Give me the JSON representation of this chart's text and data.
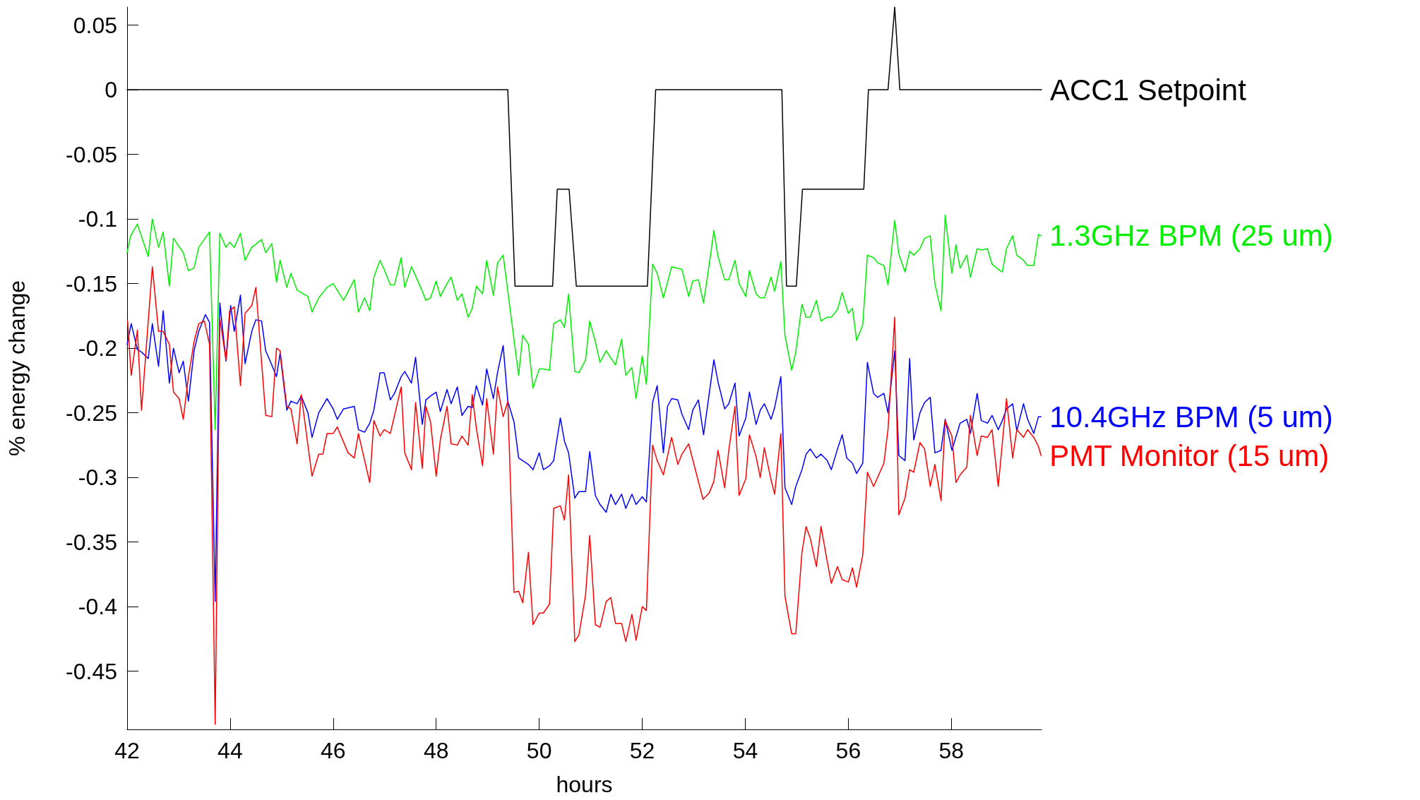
{
  "chart_data": {
    "type": "line",
    "xlabel": "hours",
    "ylabel": "% energy change",
    "xlim": [
      42,
      59.75
    ],
    "ylim": [
      -0.495,
      0.064
    ],
    "xticks": [
      42,
      44,
      46,
      48,
      50,
      52,
      54,
      56,
      58
    ],
    "yticks": [
      0.05,
      0,
      -0.05,
      -0.1,
      -0.15,
      -0.2,
      -0.25,
      -0.3,
      -0.35,
      -0.4,
      -0.45
    ],
    "grid": false,
    "legend": false,
    "marker": "none",
    "line_style": "solid",
    "series": [
      {
        "name": "ACC1 Setpoint",
        "color": "#000000",
        "x": [
          42,
          49.39,
          49.53,
          50.26,
          50.35,
          50.58,
          50.72,
          52.1,
          52.26,
          54.71,
          54.8,
          54.99,
          55.11,
          56.3,
          56.39,
          56.77,
          56.9,
          57,
          59.75
        ],
        "values": [
          0,
          0,
          -0.152,
          -0.152,
          -0.077,
          -0.077,
          -0.152,
          -0.152,
          0,
          0,
          -0.152,
          -0.152,
          -0.077,
          -0.077,
          0,
          0,
          0.064,
          0,
          0
        ]
      },
      {
        "name": "1.3GHz BPM (25 um)",
        "color": "#00ee00",
        "x": [
          42,
          42.07,
          42.2,
          42.41,
          42.49,
          42.61,
          42.7,
          42.82,
          42.9,
          43.09,
          43.19,
          43.3,
          43.39,
          43.6,
          43.71,
          43.8,
          43.92,
          43.99,
          44.08,
          44.2,
          44.29,
          44.42,
          44.61,
          44.69,
          44.81,
          44.9,
          44.97,
          45.1,
          45.18,
          45.3,
          45.51,
          45.59,
          45.72,
          45.88,
          46,
          46.2,
          46.41,
          46.49,
          46.61,
          46.71,
          46.79,
          46.91,
          46.99,
          47.11,
          47.19,
          47.32,
          47.39,
          47.52,
          47.6,
          47.73,
          47.8,
          47.89,
          48,
          48.08,
          48.21,
          48.29,
          48.41,
          48.5,
          48.62,
          48.7,
          48.78,
          48.9,
          48.98,
          49.11,
          49.19,
          49.3,
          49.6,
          49.68,
          49.79,
          49.88,
          50,
          50.08,
          50.2,
          50.28,
          50.41,
          50.49,
          50.57,
          50.69,
          50.77,
          50.9,
          50.98,
          51.09,
          51.18,
          51.3,
          51.48,
          51.6,
          51.68,
          51.8,
          51.88,
          52,
          52.08,
          52.2,
          52.29,
          52.41,
          52.57,
          52.77,
          52.9,
          52.98,
          53.09,
          53.19,
          53.29,
          53.39,
          53.47,
          53.6,
          53.68,
          53.8,
          53.88,
          54.01,
          54.08,
          54.21,
          54.29,
          54.37,
          54.5,
          54.57,
          54.69,
          54.77,
          54.9,
          54.98,
          55.1,
          55.18,
          55.26,
          55.38,
          55.47,
          55.59,
          55.67,
          55.79,
          55.88,
          56,
          56.08,
          56.16,
          56.28,
          56.37,
          56.49,
          56.57,
          56.69,
          56.77,
          56.9,
          56.98,
          57.1,
          57.19,
          57.27,
          57.39,
          57.48,
          57.59,
          57.68,
          57.8,
          57.88,
          58.01,
          58.09,
          58.17,
          58.3,
          58.37,
          58.5,
          58.58,
          58.7,
          58.79,
          58.91,
          58.99,
          59.07,
          59.19,
          59.27,
          59.4,
          59.48,
          59.6,
          59.69,
          59.74
        ],
        "values": [
          -0.126,
          -0.113,
          -0.104,
          -0.129,
          -0.1,
          -0.122,
          -0.11,
          -0.152,
          -0.115,
          -0.126,
          -0.14,
          -0.138,
          -0.122,
          -0.11,
          -0.263,
          -0.111,
          -0.122,
          -0.118,
          -0.122,
          -0.111,
          -0.132,
          -0.122,
          -0.116,
          -0.126,
          -0.119,
          -0.149,
          -0.132,
          -0.153,
          -0.142,
          -0.155,
          -0.16,
          -0.172,
          -0.161,
          -0.153,
          -0.15,
          -0.163,
          -0.147,
          -0.172,
          -0.161,
          -0.171,
          -0.145,
          -0.132,
          -0.139,
          -0.151,
          -0.151,
          -0.13,
          -0.153,
          -0.137,
          -0.144,
          -0.156,
          -0.163,
          -0.161,
          -0.148,
          -0.16,
          -0.15,
          -0.145,
          -0.163,
          -0.158,
          -0.176,
          -0.169,
          -0.152,
          -0.158,
          -0.132,
          -0.159,
          -0.134,
          -0.128,
          -0.221,
          -0.19,
          -0.197,
          -0.231,
          -0.216,
          -0.216,
          -0.217,
          -0.181,
          -0.178,
          -0.184,
          -0.158,
          -0.218,
          -0.219,
          -0.209,
          -0.179,
          -0.195,
          -0.211,
          -0.202,
          -0.213,
          -0.193,
          -0.221,
          -0.215,
          -0.239,
          -0.206,
          -0.228,
          -0.135,
          -0.142,
          -0.161,
          -0.137,
          -0.139,
          -0.16,
          -0.148,
          -0.147,
          -0.165,
          -0.138,
          -0.109,
          -0.129,
          -0.147,
          -0.147,
          -0.132,
          -0.15,
          -0.16,
          -0.14,
          -0.158,
          -0.161,
          -0.161,
          -0.145,
          -0.156,
          -0.133,
          -0.19,
          -0.217,
          -0.203,
          -0.166,
          -0.176,
          -0.176,
          -0.163,
          -0.179,
          -0.176,
          -0.176,
          -0.17,
          -0.157,
          -0.173,
          -0.169,
          -0.194,
          -0.182,
          -0.128,
          -0.13,
          -0.134,
          -0.136,
          -0.151,
          -0.101,
          -0.127,
          -0.141,
          -0.125,
          -0.128,
          -0.123,
          -0.115,
          -0.113,
          -0.15,
          -0.171,
          -0.097,
          -0.142,
          -0.12,
          -0.138,
          -0.128,
          -0.145,
          -0.123,
          -0.124,
          -0.123,
          -0.135,
          -0.139,
          -0.141,
          -0.123,
          -0.113,
          -0.128,
          -0.132,
          -0.136,
          -0.136,
          -0.112,
          -0.113
        ]
      },
      {
        "name": "10.4GHz BPM (5 um)",
        "color": "#0000ff",
        "x": [
          42,
          42.08,
          42.2,
          42.28,
          42.41,
          42.49,
          42.61,
          42.7,
          42.82,
          42.9,
          43.01,
          43.09,
          43.19,
          43.3,
          43.39,
          43.52,
          43.6,
          43.71,
          43.8,
          43.92,
          44.01,
          44.08,
          44.2,
          44.29,
          44.42,
          44.5,
          44.61,
          44.69,
          44.81,
          44.9,
          44.97,
          45.1,
          45.18,
          45.3,
          45.38,
          45.51,
          45.59,
          45.72,
          45.88,
          46,
          46.08,
          46.2,
          46.41,
          46.49,
          46.61,
          46.71,
          46.79,
          46.91,
          46.99,
          47.11,
          47.19,
          47.32,
          47.39,
          47.52,
          47.6,
          47.73,
          47.8,
          47.89,
          48,
          48.08,
          48.21,
          48.29,
          48.41,
          48.5,
          48.62,
          48.7,
          48.78,
          48.9,
          48.98,
          49.11,
          49.19,
          49.3,
          49.39,
          49.51,
          49.6,
          49.68,
          49.79,
          49.88,
          50,
          50.08,
          50.2,
          50.28,
          50.41,
          50.49,
          50.57,
          50.69,
          50.77,
          50.9,
          50.98,
          51.09,
          51.18,
          51.3,
          51.39,
          51.48,
          51.6,
          51.68,
          51.8,
          51.88,
          52,
          52.08,
          52.2,
          52.29,
          52.41,
          52.49,
          52.57,
          52.69,
          52.77,
          52.9,
          52.98,
          53.09,
          53.19,
          53.29,
          53.39,
          53.47,
          53.6,
          53.68,
          53.8,
          53.88,
          54.01,
          54.08,
          54.21,
          54.29,
          54.37,
          54.5,
          54.57,
          54.69,
          54.77,
          54.9,
          54.98,
          55.1,
          55.18,
          55.26,
          55.38,
          55.47,
          55.59,
          55.67,
          55.79,
          55.88,
          55.97,
          56.08,
          56.16,
          56.28,
          56.37,
          56.49,
          56.57,
          56.69,
          56.77,
          56.9,
          56.98,
          57.1,
          57.19,
          57.27,
          57.39,
          57.48,
          57.59,
          57.68,
          57.8,
          57.88,
          58.01,
          58.17,
          58.3,
          58.37,
          58.5,
          58.58,
          58.7,
          58.79,
          58.91,
          58.99,
          59.07,
          59.19,
          59.27,
          59.4,
          59.48,
          59.6,
          59.69,
          59.74
        ],
        "values": [
          -0.197,
          -0.181,
          -0.201,
          -0.203,
          -0.208,
          -0.181,
          -0.214,
          -0.171,
          -0.227,
          -0.2,
          -0.219,
          -0.21,
          -0.241,
          -0.202,
          -0.187,
          -0.174,
          -0.18,
          -0.396,
          -0.165,
          -0.21,
          -0.167,
          -0.187,
          -0.159,
          -0.212,
          -0.187,
          -0.178,
          -0.179,
          -0.202,
          -0.213,
          -0.222,
          -0.204,
          -0.248,
          -0.241,
          -0.243,
          -0.237,
          -0.25,
          -0.269,
          -0.25,
          -0.239,
          -0.247,
          -0.255,
          -0.247,
          -0.245,
          -0.263,
          -0.265,
          -0.258,
          -0.248,
          -0.219,
          -0.219,
          -0.24,
          -0.235,
          -0.222,
          -0.218,
          -0.227,
          -0.207,
          -0.259,
          -0.24,
          -0.237,
          -0.234,
          -0.249,
          -0.232,
          -0.243,
          -0.23,
          -0.252,
          -0.245,
          -0.246,
          -0.229,
          -0.244,
          -0.216,
          -0.239,
          -0.219,
          -0.198,
          -0.241,
          -0.257,
          -0.285,
          -0.287,
          -0.29,
          -0.294,
          -0.281,
          -0.294,
          -0.291,
          -0.287,
          -0.254,
          -0.272,
          -0.281,
          -0.316,
          -0.311,
          -0.311,
          -0.28,
          -0.314,
          -0.321,
          -0.327,
          -0.313,
          -0.321,
          -0.313,
          -0.324,
          -0.313,
          -0.321,
          -0.315,
          -0.319,
          -0.242,
          -0.229,
          -0.281,
          -0.245,
          -0.239,
          -0.24,
          -0.251,
          -0.263,
          -0.248,
          -0.24,
          -0.267,
          -0.238,
          -0.209,
          -0.226,
          -0.247,
          -0.243,
          -0.227,
          -0.268,
          -0.254,
          -0.234,
          -0.259,
          -0.248,
          -0.243,
          -0.255,
          -0.246,
          -0.222,
          -0.308,
          -0.321,
          -0.307,
          -0.294,
          -0.282,
          -0.278,
          -0.285,
          -0.282,
          -0.287,
          -0.294,
          -0.278,
          -0.267,
          -0.285,
          -0.289,
          -0.297,
          -0.289,
          -0.211,
          -0.235,
          -0.238,
          -0.235,
          -0.25,
          -0.202,
          -0.283,
          -0.287,
          -0.208,
          -0.271,
          -0.25,
          -0.242,
          -0.238,
          -0.281,
          -0.279,
          -0.255,
          -0.279,
          -0.258,
          -0.255,
          -0.266,
          -0.235,
          -0.256,
          -0.258,
          -0.252,
          -0.263,
          -0.256,
          -0.247,
          -0.243,
          -0.264,
          -0.243,
          -0.255,
          -0.266,
          -0.253,
          -0.253
        ]
      },
      {
        "name": "PMT Monitor (15 um)",
        "color": "#ff0000",
        "x": [
          42.01,
          42.08,
          42.2,
          42.28,
          42.49,
          42.61,
          42.7,
          42.82,
          42.9,
          43.01,
          43.09,
          43.19,
          43.3,
          43.39,
          43.5,
          43.6,
          43.71,
          43.8,
          43.92,
          43.99,
          44.08,
          44.2,
          44.29,
          44.42,
          44.5,
          44.69,
          44.81,
          44.9,
          44.97,
          45.1,
          45.18,
          45.3,
          45.38,
          45.59,
          45.72,
          45.8,
          45.88,
          46,
          46.08,
          46.29,
          46.41,
          46.49,
          46.71,
          46.79,
          46.91,
          46.99,
          47.11,
          47.32,
          47.39,
          47.52,
          47.6,
          47.73,
          47.8,
          47.89,
          48,
          48.08,
          48.21,
          48.29,
          48.41,
          48.5,
          48.62,
          48.7,
          48.78,
          48.9,
          48.98,
          49.11,
          49.19,
          49.3,
          49.39,
          49.51,
          49.6,
          49.68,
          49.79,
          49.88,
          50,
          50.08,
          50.2,
          50.28,
          50.41,
          50.49,
          50.57,
          50.69,
          50.77,
          50.9,
          50.98,
          51.09,
          51.18,
          51.3,
          51.39,
          51.48,
          51.6,
          51.68,
          51.8,
          51.88,
          52,
          52.08,
          52.2,
          52.29,
          52.41,
          52.57,
          52.69,
          52.77,
          52.9,
          53.18,
          53.3,
          53.39,
          53.47,
          53.6,
          53.68,
          53.8,
          53.88,
          54.01,
          54.08,
          54.21,
          54.29,
          54.37,
          54.5,
          54.57,
          54.69,
          54.77,
          54.9,
          54.98,
          55.1,
          55.18,
          55.26,
          55.38,
          55.47,
          55.59,
          55.67,
          55.79,
          55.88,
          56,
          56.08,
          56.16,
          56.28,
          56.37,
          56.49,
          56.69,
          56.77,
          56.9,
          56.98,
          57.1,
          57.19,
          57.27,
          57.39,
          57.48,
          57.59,
          57.68,
          57.8,
          57.88,
          58.01,
          58.09,
          58.17,
          58.3,
          58.37,
          58.5,
          58.58,
          58.7,
          58.79,
          58.91,
          59.07,
          59.19,
          59.27,
          59.4,
          59.48,
          59.6,
          59.69,
          59.74
        ],
        "values": [
          -0.179,
          -0.221,
          -0.186,
          -0.248,
          -0.137,
          -0.187,
          -0.187,
          -0.197,
          -0.234,
          -0.239,
          -0.255,
          -0.222,
          -0.195,
          -0.181,
          -0.179,
          -0.197,
          -0.491,
          -0.177,
          -0.209,
          -0.171,
          -0.168,
          -0.229,
          -0.173,
          -0.167,
          -0.153,
          -0.252,
          -0.253,
          -0.2,
          -0.202,
          -0.245,
          -0.247,
          -0.274,
          -0.236,
          -0.299,
          -0.282,
          -0.282,
          -0.266,
          -0.266,
          -0.261,
          -0.281,
          -0.285,
          -0.266,
          -0.304,
          -0.256,
          -0.268,
          -0.263,
          -0.266,
          -0.23,
          -0.281,
          -0.294,
          -0.242,
          -0.293,
          -0.245,
          -0.257,
          -0.299,
          -0.271,
          -0.245,
          -0.274,
          -0.275,
          -0.268,
          -0.275,
          -0.236,
          -0.262,
          -0.291,
          -0.239,
          -0.282,
          -0.23,
          -0.253,
          -0.241,
          -0.389,
          -0.388,
          -0.397,
          -0.358,
          -0.414,
          -0.405,
          -0.405,
          -0.398,
          -0.324,
          -0.322,
          -0.333,
          -0.298,
          -0.427,
          -0.422,
          -0.391,
          -0.345,
          -0.414,
          -0.416,
          -0.396,
          -0.393,
          -0.413,
          -0.413,
          -0.427,
          -0.406,
          -0.426,
          -0.4,
          -0.403,
          -0.275,
          -0.287,
          -0.298,
          -0.269,
          -0.29,
          -0.282,
          -0.274,
          -0.317,
          -0.312,
          -0.303,
          -0.279,
          -0.308,
          -0.279,
          -0.245,
          -0.314,
          -0.301,
          -0.267,
          -0.284,
          -0.3,
          -0.277,
          -0.302,
          -0.313,
          -0.266,
          -0.392,
          -0.421,
          -0.421,
          -0.358,
          -0.338,
          -0.347,
          -0.369,
          -0.338,
          -0.365,
          -0.382,
          -0.369,
          -0.379,
          -0.381,
          -0.37,
          -0.385,
          -0.36,
          -0.296,
          -0.307,
          -0.289,
          -0.263,
          -0.176,
          -0.329,
          -0.316,
          -0.294,
          -0.296,
          -0.273,
          -0.278,
          -0.307,
          -0.29,
          -0.318,
          -0.256,
          -0.268,
          -0.304,
          -0.298,
          -0.292,
          -0.252,
          -0.283,
          -0.268,
          -0.269,
          -0.263,
          -0.307,
          -0.239,
          -0.285,
          -0.263,
          -0.269,
          -0.263,
          -0.269,
          -0.276,
          -0.283
        ]
      }
    ]
  }
}
